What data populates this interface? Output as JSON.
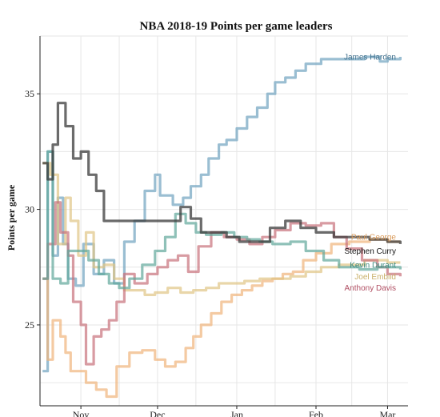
{
  "chart_data": {
    "type": "line",
    "title": "NBA 2018-19 Points per game leaders",
    "xlabel": "",
    "ylabel": "Points per game",
    "x_type": "date",
    "xlim": [
      "2018-10-16",
      "2019-03-09"
    ],
    "ylim": [
      21.5,
      37.5
    ],
    "x_ticks": [
      {
        "date": "2018-11-01",
        "label": "Nov"
      },
      {
        "date": "2018-12-01",
        "label": "Dec"
      },
      {
        "date": "2019-01-01",
        "label": "Jan"
      },
      {
        "date": "2019-02-01",
        "label": "Feb"
      },
      {
        "date": "2019-03-01",
        "label": "Mar"
      }
    ],
    "y_ticks": [
      25,
      30,
      35
    ],
    "grid": true,
    "legend": "direct labels at line ends",
    "series": [
      {
        "name": "James Harden",
        "color": "#6fa3bf",
        "points": [
          [
            "2018-10-17",
            23.0
          ],
          [
            "2018-10-19",
            32.5
          ],
          [
            "2018-10-21",
            28.0
          ],
          [
            "2018-10-23",
            30.5
          ],
          [
            "2018-10-25",
            28.5
          ],
          [
            "2018-10-27",
            27.0
          ],
          [
            "2018-10-30",
            26.7
          ],
          [
            "2018-11-02",
            28.5
          ],
          [
            "2018-11-06",
            27.2
          ],
          [
            "2018-11-10",
            27.8
          ],
          [
            "2018-11-14",
            26.8
          ],
          [
            "2018-11-18",
            28.6
          ],
          [
            "2018-11-22",
            29.5
          ],
          [
            "2018-11-26",
            30.8
          ],
          [
            "2018-11-30",
            31.5
          ],
          [
            "2018-12-02",
            30.6
          ],
          [
            "2018-12-07",
            30.2
          ],
          [
            "2018-12-11",
            30.5
          ],
          [
            "2018-12-14",
            31.0
          ],
          [
            "2018-12-18",
            31.5
          ],
          [
            "2018-12-21",
            32.2
          ],
          [
            "2018-12-25",
            32.8
          ],
          [
            "2018-12-28",
            33.0
          ],
          [
            "2019-01-01",
            33.5
          ],
          [
            "2019-01-05",
            34.0
          ],
          [
            "2019-01-09",
            34.4
          ],
          [
            "2019-01-13",
            35.0
          ],
          [
            "2019-01-16",
            35.5
          ],
          [
            "2019-01-20",
            35.7
          ],
          [
            "2019-01-24",
            36.0
          ],
          [
            "2019-01-28",
            36.3
          ],
          [
            "2019-02-03",
            36.5
          ],
          [
            "2019-02-10",
            36.5
          ],
          [
            "2019-02-20",
            36.6
          ],
          [
            "2019-02-26",
            36.4
          ],
          [
            "2019-03-01",
            36.5
          ],
          [
            "2019-03-06",
            36.6
          ]
        ]
      },
      {
        "name": "Paul George",
        "color": "#f0b47a",
        "points": [
          [
            "2018-10-17",
            27.0
          ],
          [
            "2018-10-19",
            23.5
          ],
          [
            "2018-10-21",
            25.2
          ],
          [
            "2018-10-24",
            24.5
          ],
          [
            "2018-10-26",
            23.8
          ],
          [
            "2018-10-28",
            23.0
          ],
          [
            "2018-10-31",
            23.0
          ],
          [
            "2018-11-03",
            22.5
          ],
          [
            "2018-11-07",
            22.2
          ],
          [
            "2018-11-11",
            21.9
          ],
          [
            "2018-11-15",
            23.2
          ],
          [
            "2018-11-20",
            23.8
          ],
          [
            "2018-11-25",
            23.9
          ],
          [
            "2018-11-30",
            23.5
          ],
          [
            "2018-12-04",
            23.2
          ],
          [
            "2018-12-08",
            23.4
          ],
          [
            "2018-12-12",
            24.0
          ],
          [
            "2018-12-15",
            24.5
          ],
          [
            "2018-12-18",
            25.0
          ],
          [
            "2018-12-22",
            25.5
          ],
          [
            "2018-12-26",
            26.0
          ],
          [
            "2018-12-30",
            26.3
          ],
          [
            "2019-01-03",
            26.5
          ],
          [
            "2019-01-07",
            26.7
          ],
          [
            "2019-01-11",
            26.9
          ],
          [
            "2019-01-15",
            27.0
          ],
          [
            "2019-01-19",
            27.2
          ],
          [
            "2019-01-23",
            27.3
          ],
          [
            "2019-01-27",
            27.8
          ],
          [
            "2019-02-01",
            28.1
          ],
          [
            "2019-02-07",
            28.5
          ],
          [
            "2019-02-14",
            28.6
          ],
          [
            "2019-02-22",
            28.7
          ],
          [
            "2019-03-01",
            28.6
          ],
          [
            "2019-03-06",
            28.6
          ]
        ]
      },
      {
        "name": "Stephen Curry",
        "color": "#e0c485",
        "points": [
          [
            "2018-10-17",
            32.0
          ],
          [
            "2018-10-20",
            31.5
          ],
          [
            "2018-10-23",
            28.5
          ],
          [
            "2018-10-26",
            30.5
          ],
          [
            "2018-10-28",
            29.5
          ],
          [
            "2018-10-31",
            28.0
          ],
          [
            "2018-11-03",
            29.0
          ],
          [
            "2018-11-06",
            27.5
          ],
          [
            "2018-11-10",
            27.6
          ],
          [
            "2018-11-14",
            27.0
          ],
          [
            "2018-11-18",
            26.5
          ],
          [
            "2018-11-22",
            26.5
          ],
          [
            "2018-11-26",
            26.3
          ],
          [
            "2018-11-30",
            26.4
          ],
          [
            "2018-12-05",
            26.6
          ],
          [
            "2018-12-10",
            26.4
          ],
          [
            "2018-12-15",
            26.5
          ],
          [
            "2018-12-20",
            26.6
          ],
          [
            "2018-12-25",
            26.8
          ],
          [
            "2018-12-30",
            26.8
          ],
          [
            "2019-01-04",
            26.9
          ],
          [
            "2019-01-10",
            27.0
          ],
          [
            "2019-01-16",
            27.0
          ],
          [
            "2019-01-22",
            27.1
          ],
          [
            "2019-01-28",
            27.3
          ],
          [
            "2019-02-03",
            27.5
          ],
          [
            "2019-02-10",
            27.6
          ],
          [
            "2019-02-20",
            27.8
          ],
          [
            "2019-03-01",
            27.7
          ],
          [
            "2019-03-06",
            27.7
          ]
        ]
      },
      {
        "name": "Anthony Davis",
        "color": "#c8707a",
        "points": [
          [
            "2018-10-17",
            27.0
          ],
          [
            "2018-10-19",
            28.5
          ],
          [
            "2018-10-22",
            30.3
          ],
          [
            "2018-10-24",
            29.0
          ],
          [
            "2018-10-27",
            28.0
          ],
          [
            "2018-10-29",
            26.0
          ],
          [
            "2018-11-01",
            25.0
          ],
          [
            "2018-11-03",
            23.3
          ],
          [
            "2018-11-06",
            24.5
          ],
          [
            "2018-11-09",
            24.8
          ],
          [
            "2018-11-12",
            25.2
          ],
          [
            "2018-11-15",
            26.0
          ],
          [
            "2018-11-18",
            27.2
          ],
          [
            "2018-11-22",
            26.8
          ],
          [
            "2018-11-27",
            27.2
          ],
          [
            "2018-12-01",
            27.5
          ],
          [
            "2018-12-05",
            27.8
          ],
          [
            "2018-12-09",
            28.0
          ],
          [
            "2018-12-13",
            27.3
          ],
          [
            "2018-12-17",
            28.4
          ],
          [
            "2018-12-22",
            29.0
          ],
          [
            "2018-12-27",
            28.8
          ],
          [
            "2019-01-01",
            28.7
          ],
          [
            "2019-01-06",
            28.5
          ],
          [
            "2019-01-11",
            28.8
          ],
          [
            "2019-01-16",
            29.1
          ],
          [
            "2019-01-22",
            29.4
          ],
          [
            "2019-01-28",
            29.3
          ],
          [
            "2019-02-03",
            29.4
          ],
          [
            "2019-02-08",
            28.8
          ],
          [
            "2019-02-13",
            28.3
          ],
          [
            "2019-02-19",
            27.8
          ],
          [
            "2019-02-25",
            27.5
          ],
          [
            "2019-03-01",
            27.2
          ],
          [
            "2019-03-06",
            27.1
          ]
        ]
      },
      {
        "name": "Kevin Durant",
        "color": "#5fa69a",
        "points": [
          [
            "2018-10-17",
            27.0
          ],
          [
            "2018-10-19",
            32.5
          ],
          [
            "2018-10-21",
            27.0
          ],
          [
            "2018-10-24",
            26.8
          ],
          [
            "2018-10-27",
            28.2
          ],
          [
            "2018-10-31",
            28.2
          ],
          [
            "2018-11-04",
            27.8
          ],
          [
            "2018-11-08",
            27.2
          ],
          [
            "2018-11-12",
            26.8
          ],
          [
            "2018-11-16",
            26.6
          ],
          [
            "2018-11-20",
            27.0
          ],
          [
            "2018-11-25",
            27.6
          ],
          [
            "2018-11-30",
            28.2
          ],
          [
            "2018-12-04",
            28.8
          ],
          [
            "2018-12-08",
            29.8
          ],
          [
            "2018-12-12",
            29.4
          ],
          [
            "2018-12-16",
            29.0
          ],
          [
            "2018-12-20",
            28.9
          ],
          [
            "2018-12-26",
            29.0
          ],
          [
            "2018-12-31",
            28.8
          ],
          [
            "2019-01-05",
            28.7
          ],
          [
            "2019-01-10",
            28.6
          ],
          [
            "2019-01-15",
            28.5
          ],
          [
            "2019-01-22",
            28.6
          ],
          [
            "2019-01-28",
            28.2
          ],
          [
            "2019-02-04",
            27.8
          ],
          [
            "2019-02-10",
            27.5
          ],
          [
            "2019-02-18",
            27.4
          ],
          [
            "2019-02-25",
            27.5
          ],
          [
            "2019-03-01",
            27.5
          ],
          [
            "2019-03-06",
            27.4
          ]
        ]
      },
      {
        "name": "Joel Embiid",
        "color": "#3a3a3a",
        "points": [
          [
            "2018-10-17",
            32.0
          ],
          [
            "2018-10-19",
            31.3
          ],
          [
            "2018-10-21",
            32.8
          ],
          [
            "2018-10-23",
            34.6
          ],
          [
            "2018-10-26",
            33.6
          ],
          [
            "2018-10-29",
            32.2
          ],
          [
            "2018-11-01",
            32.5
          ],
          [
            "2018-11-04",
            31.5
          ],
          [
            "2018-11-07",
            30.8
          ],
          [
            "2018-11-10",
            29.5
          ],
          [
            "2018-11-20",
            29.5
          ],
          [
            "2018-11-30",
            29.5
          ],
          [
            "2018-12-06",
            29.5
          ],
          [
            "2018-12-10",
            30.1
          ],
          [
            "2018-12-14",
            29.6
          ],
          [
            "2018-12-18",
            29.0
          ],
          [
            "2018-12-23",
            29.0
          ],
          [
            "2018-12-28",
            28.8
          ],
          [
            "2019-01-02",
            28.6
          ],
          [
            "2019-01-08",
            28.6
          ],
          [
            "2019-01-14",
            29.2
          ],
          [
            "2019-01-20",
            29.5
          ],
          [
            "2019-01-26",
            29.2
          ],
          [
            "2019-02-01",
            29.0
          ],
          [
            "2019-02-08",
            28.8
          ],
          [
            "2019-02-15",
            28.8
          ],
          [
            "2019-02-22",
            28.7
          ],
          [
            "2019-03-01",
            28.6
          ],
          [
            "2019-03-06",
            28.5
          ]
        ]
      }
    ],
    "end_labels": [
      {
        "text": "James Harden",
        "color": "#3f6f8c",
        "y": 36.6
      },
      {
        "text": "Paul George",
        "color": "#d99a5a",
        "y": 28.8
      },
      {
        "text": "Stephen Curry",
        "color": "#111111",
        "y": 28.2
      },
      {
        "text": "Kevin Durant",
        "color": "#3a8b7f",
        "y": 27.6
      },
      {
        "text": "Joel Embiid",
        "color": "#c9b06a",
        "y": 27.1
      },
      {
        "text": "Anthony Davis",
        "color": "#b04f63",
        "y": 26.6
      }
    ]
  }
}
